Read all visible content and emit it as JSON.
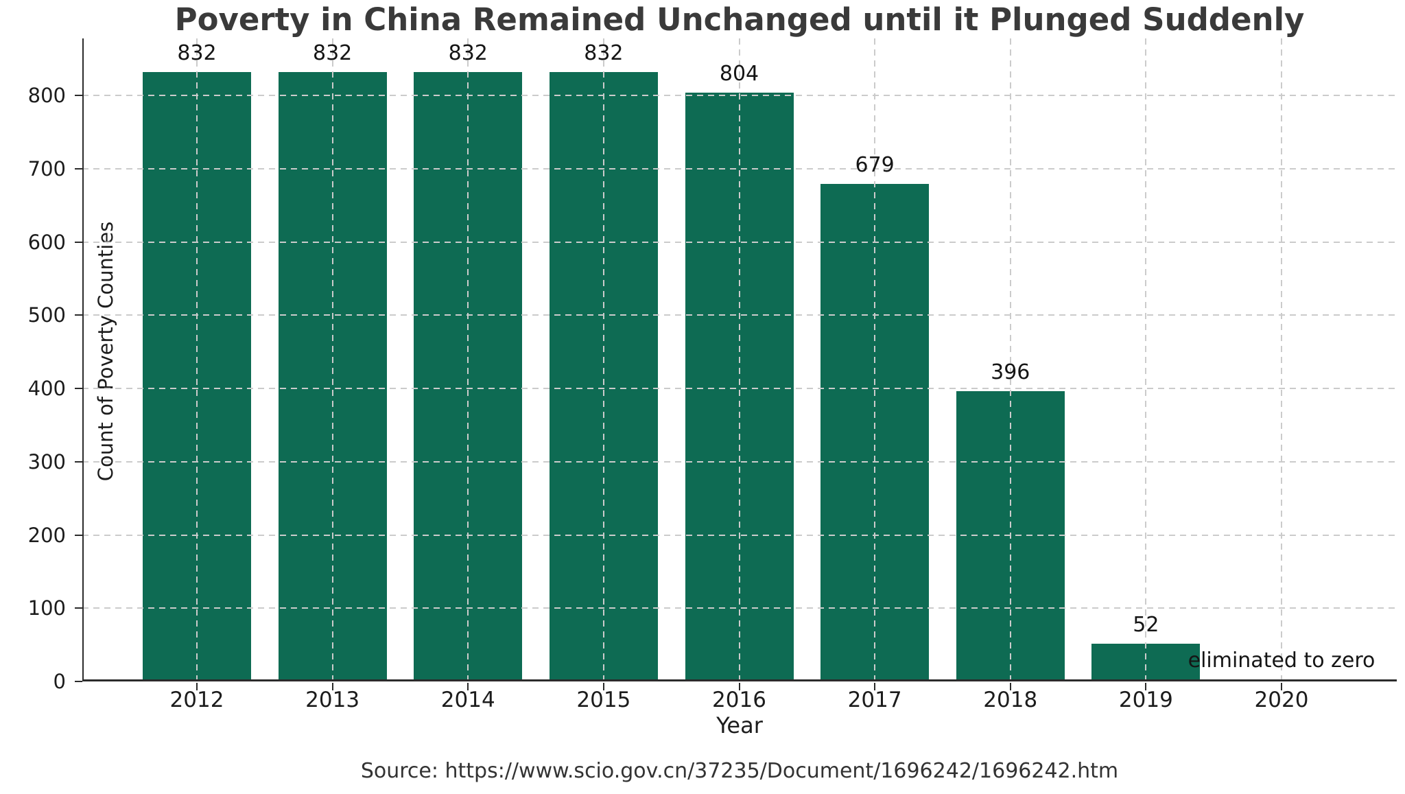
{
  "source": "Source: https://www.scio.gov.cn/37235/Document/1696242/1696242.htm",
  "chart_data": {
    "type": "bar",
    "title": "Poverty in China Remained Unchanged until it Plunged Suddenly",
    "xlabel": "Year",
    "ylabel": "Count of Poverty Counties",
    "categories": [
      "2012",
      "2013",
      "2014",
      "2015",
      "2016",
      "2017",
      "2018",
      "2019",
      "2020"
    ],
    "values": [
      832,
      832,
      832,
      832,
      804,
      679,
      396,
      52,
      0
    ],
    "value_labels": [
      "832",
      "832",
      "832",
      "832",
      "804",
      "679",
      "396",
      "52",
      ""
    ],
    "annotation": {
      "text": "eliminated to zero",
      "category": "2020"
    },
    "ylim": [
      0,
      878
    ],
    "yticks": [
      0,
      100,
      200,
      300,
      400,
      500,
      600,
      700,
      800
    ],
    "grid": true,
    "legend": "none",
    "colors": {
      "bar": "#0e6b53",
      "grid": "#cbcbcb",
      "axis": "#2b2b2b",
      "title_text": "#3a3a3a",
      "tick_text": "#1c1c1c"
    }
  }
}
